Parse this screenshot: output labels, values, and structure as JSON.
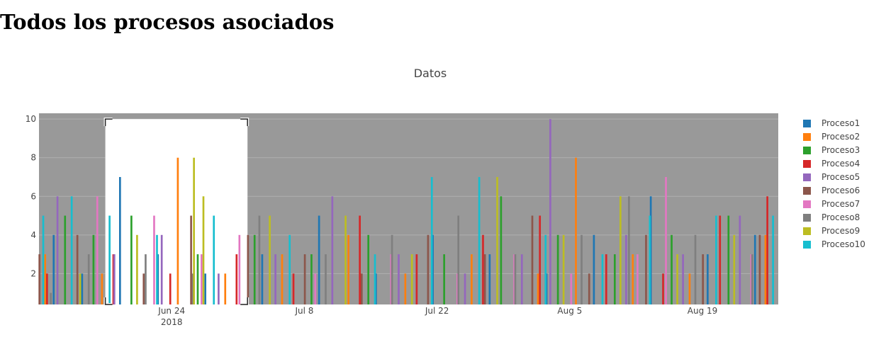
{
  "heading": "Todos los procesos asociados",
  "chart_data": {
    "type": "bar",
    "title": "Datos",
    "xlabel": "",
    "ylabel": "",
    "x_start": "2018-06-10",
    "x_end": "2018-08-27",
    "ylim": [
      0.4,
      10.3
    ],
    "y_ticks": [
      2,
      4,
      6,
      8,
      10
    ],
    "x_ticks": [
      {
        "date": "2018-06-24",
        "label": "Jun 24",
        "sublabel": "2018"
      },
      {
        "date": "2018-07-08",
        "label": "Jul 8",
        "sublabel": ""
      },
      {
        "date": "2018-07-22",
        "label": "Jul 22",
        "sublabel": ""
      },
      {
        "date": "2018-08-05",
        "label": "Aug 5",
        "sublabel": ""
      },
      {
        "date": "2018-08-19",
        "label": "Aug 19",
        "sublabel": ""
      }
    ],
    "grid": true,
    "legend_position": "right",
    "selection_box": {
      "x0": "2018-06-17",
      "x1": "2018-07-02",
      "y0": 0.4,
      "y1": 10
    },
    "series": [
      {
        "name": "Proceso1",
        "color": "#1f77b4",
        "values": [
          {
            "x": "2018-06-12",
            "y": 4
          },
          {
            "x": "2018-06-15",
            "y": 2
          },
          {
            "x": "2018-06-19",
            "y": 7
          },
          {
            "x": "2018-06-23",
            "y": 3
          },
          {
            "x": "2018-06-28",
            "y": 2
          },
          {
            "x": "2018-07-04",
            "y": 3
          },
          {
            "x": "2018-07-10",
            "y": 5
          },
          {
            "x": "2018-07-16",
            "y": 2
          },
          {
            "x": "2018-07-22",
            "y": 4
          },
          {
            "x": "2018-07-28",
            "y": 3
          },
          {
            "x": "2018-08-03",
            "y": 2
          },
          {
            "x": "2018-08-08",
            "y": 4
          },
          {
            "x": "2018-08-14",
            "y": 6
          },
          {
            "x": "2018-08-20",
            "y": 3
          },
          {
            "x": "2018-08-25",
            "y": 4
          }
        ]
      },
      {
        "name": "Proceso2",
        "color": "#ff7f0e",
        "values": [
          {
            "x": "2018-06-11",
            "y": 3
          },
          {
            "x": "2018-06-17",
            "y": 2
          },
          {
            "x": "2018-06-25",
            "y": 8
          },
          {
            "x": "2018-06-30",
            "y": 2
          },
          {
            "x": "2018-07-06",
            "y": 3
          },
          {
            "x": "2018-07-13",
            "y": 4
          },
          {
            "x": "2018-07-19",
            "y": 2
          },
          {
            "x": "2018-07-26",
            "y": 3
          },
          {
            "x": "2018-08-02",
            "y": 2
          },
          {
            "x": "2018-08-06",
            "y": 8
          },
          {
            "x": "2018-08-12",
            "y": 3
          },
          {
            "x": "2018-08-18",
            "y": 2
          },
          {
            "x": "2018-08-26",
            "y": 4
          }
        ]
      },
      {
        "name": "Proceso3",
        "color": "#2ca02c",
        "values": [
          {
            "x": "2018-06-13",
            "y": 5
          },
          {
            "x": "2018-06-16",
            "y": 4
          },
          {
            "x": "2018-06-20",
            "y": 5
          },
          {
            "x": "2018-06-27",
            "y": 3
          },
          {
            "x": "2018-07-03",
            "y": 4
          },
          {
            "x": "2018-07-09",
            "y": 3
          },
          {
            "x": "2018-07-15",
            "y": 4
          },
          {
            "x": "2018-07-23",
            "y": 3
          },
          {
            "x": "2018-07-29",
            "y": 6
          },
          {
            "x": "2018-08-04",
            "y": 4
          },
          {
            "x": "2018-08-10",
            "y": 3
          },
          {
            "x": "2018-08-16",
            "y": 4
          },
          {
            "x": "2018-08-22",
            "y": 5
          }
        ]
      },
      {
        "name": "Proceso4",
        "color": "#d62728",
        "values": [
          {
            "x": "2018-06-11",
            "y": 2
          },
          {
            "x": "2018-06-18",
            "y": 3
          },
          {
            "x": "2018-06-24",
            "y": 2
          },
          {
            "x": "2018-07-01",
            "y": 3
          },
          {
            "x": "2018-07-07",
            "y": 2
          },
          {
            "x": "2018-07-14",
            "y": 5
          },
          {
            "x": "2018-07-20",
            "y": 3
          },
          {
            "x": "2018-07-27",
            "y": 4
          },
          {
            "x": "2018-08-02",
            "y": 5
          },
          {
            "x": "2018-08-09",
            "y": 3
          },
          {
            "x": "2018-08-15",
            "y": 2
          },
          {
            "x": "2018-08-21",
            "y": 5
          },
          {
            "x": "2018-08-26",
            "y": 6
          }
        ]
      },
      {
        "name": "Proceso5",
        "color": "#9467bd",
        "values": [
          {
            "x": "2018-06-12",
            "y": 6
          },
          {
            "x": "2018-06-18",
            "y": 3
          },
          {
            "x": "2018-06-23",
            "y": 4
          },
          {
            "x": "2018-06-29",
            "y": 2
          },
          {
            "x": "2018-07-05",
            "y": 3
          },
          {
            "x": "2018-07-11",
            "y": 6
          },
          {
            "x": "2018-07-18",
            "y": 3
          },
          {
            "x": "2018-07-25",
            "y": 2
          },
          {
            "x": "2018-07-31",
            "y": 3
          },
          {
            "x": "2018-08-03",
            "y": 10
          },
          {
            "x": "2018-08-11",
            "y": 4
          },
          {
            "x": "2018-08-17",
            "y": 3
          },
          {
            "x": "2018-08-23",
            "y": 5
          }
        ]
      },
      {
        "name": "Proceso6",
        "color": "#8c564b",
        "values": [
          {
            "x": "2018-06-10",
            "y": 3
          },
          {
            "x": "2018-06-14",
            "y": 4
          },
          {
            "x": "2018-06-21",
            "y": 2
          },
          {
            "x": "2018-06-26",
            "y": 5
          },
          {
            "x": "2018-07-02",
            "y": 4
          },
          {
            "x": "2018-07-08",
            "y": 3
          },
          {
            "x": "2018-07-14",
            "y": 2
          },
          {
            "x": "2018-07-21",
            "y": 4
          },
          {
            "x": "2018-07-27",
            "y": 3
          },
          {
            "x": "2018-08-01",
            "y": 5
          },
          {
            "x": "2018-08-07",
            "y": 2
          },
          {
            "x": "2018-08-13",
            "y": 4
          },
          {
            "x": "2018-08-19",
            "y": 3
          },
          {
            "x": "2018-08-25",
            "y": 4
          }
        ]
      },
      {
        "name": "Proceso7",
        "color": "#e377c2",
        "values": [
          {
            "x": "2018-06-16",
            "y": 6
          },
          {
            "x": "2018-06-22",
            "y": 5
          },
          {
            "x": "2018-06-27",
            "y": 3
          },
          {
            "x": "2018-07-01",
            "y": 4
          },
          {
            "x": "2018-07-09",
            "y": 2
          },
          {
            "x": "2018-07-17",
            "y": 3
          },
          {
            "x": "2018-07-24",
            "y": 2
          },
          {
            "x": "2018-07-30",
            "y": 3
          },
          {
            "x": "2018-08-05",
            "y": 2
          },
          {
            "x": "2018-08-12",
            "y": 3
          },
          {
            "x": "2018-08-15",
            "y": 7
          },
          {
            "x": "2018-08-24",
            "y": 3
          }
        ]
      },
      {
        "name": "Proceso8",
        "color": "#7f7f7f",
        "values": [
          {
            "x": "2018-06-11",
            "y": 1
          },
          {
            "x": "2018-06-15",
            "y": 3
          },
          {
            "x": "2018-06-21",
            "y": 3
          },
          {
            "x": "2018-06-26",
            "y": 2
          },
          {
            "x": "2018-07-03",
            "y": 5
          },
          {
            "x": "2018-07-10",
            "y": 3
          },
          {
            "x": "2018-07-17",
            "y": 4
          },
          {
            "x": "2018-07-24",
            "y": 5
          },
          {
            "x": "2018-07-30",
            "y": 3
          },
          {
            "x": "2018-08-06",
            "y": 4
          },
          {
            "x": "2018-08-11",
            "y": 6
          },
          {
            "x": "2018-08-18",
            "y": 4
          },
          {
            "x": "2018-08-24",
            "y": 3
          }
        ]
      },
      {
        "name": "Proceso9",
        "color": "#bcbd22",
        "values": [
          {
            "x": "2018-06-14",
            "y": 2
          },
          {
            "x": "2018-06-20",
            "y": 4
          },
          {
            "x": "2018-06-26",
            "y": 8
          },
          {
            "x": "2018-06-27",
            "y": 6
          },
          {
            "x": "2018-07-04",
            "y": 5
          },
          {
            "x": "2018-07-12",
            "y": 5
          },
          {
            "x": "2018-07-19",
            "y": 3
          },
          {
            "x": "2018-07-28",
            "y": 7
          },
          {
            "x": "2018-08-04",
            "y": 4
          },
          {
            "x": "2018-08-10",
            "y": 6
          },
          {
            "x": "2018-08-16",
            "y": 3
          },
          {
            "x": "2018-08-22",
            "y": 4
          }
        ]
      },
      {
        "name": "Proceso10",
        "color": "#17becf",
        "values": [
          {
            "x": "2018-06-10",
            "y": 5
          },
          {
            "x": "2018-06-13",
            "y": 6
          },
          {
            "x": "2018-06-17",
            "y": 5
          },
          {
            "x": "2018-06-22",
            "y": 4
          },
          {
            "x": "2018-06-28",
            "y": 5
          },
          {
            "x": "2018-07-06",
            "y": 4
          },
          {
            "x": "2018-07-15",
            "y": 3
          },
          {
            "x": "2018-07-21",
            "y": 7
          },
          {
            "x": "2018-07-26",
            "y": 7
          },
          {
            "x": "2018-08-02",
            "y": 4
          },
          {
            "x": "2018-08-08",
            "y": 3
          },
          {
            "x": "2018-08-13",
            "y": 5
          },
          {
            "x": "2018-08-20",
            "y": 5
          },
          {
            "x": "2018-08-26",
            "y": 5
          }
        ]
      }
    ]
  }
}
